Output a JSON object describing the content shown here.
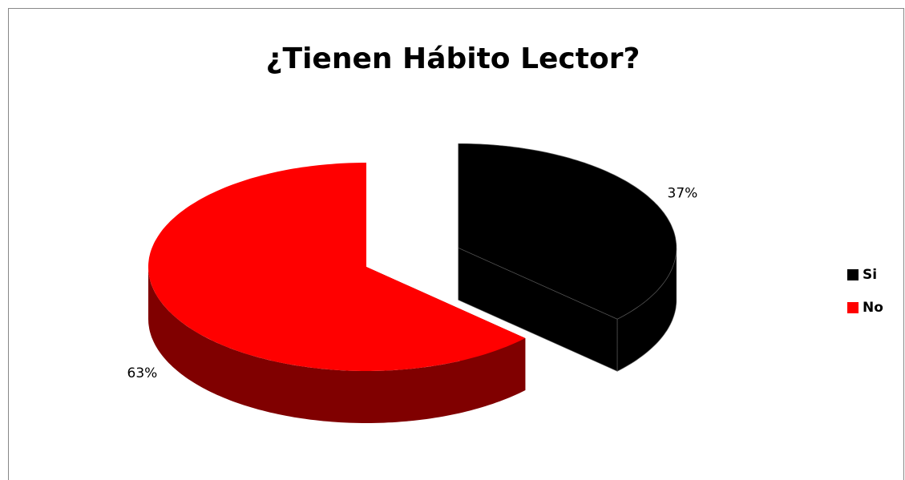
{
  "chart_data": {
    "type": "pie",
    "title": "¿Tienen Hábito Lector?",
    "categories": [
      "Si",
      "No"
    ],
    "values": [
      37,
      63
    ],
    "value_labels": [
      "37%",
      "63%"
    ],
    "colors": [
      "#000000",
      "#ff0000"
    ],
    "side_colors": [
      "#000000",
      "#800000"
    ],
    "legend": "right"
  }
}
